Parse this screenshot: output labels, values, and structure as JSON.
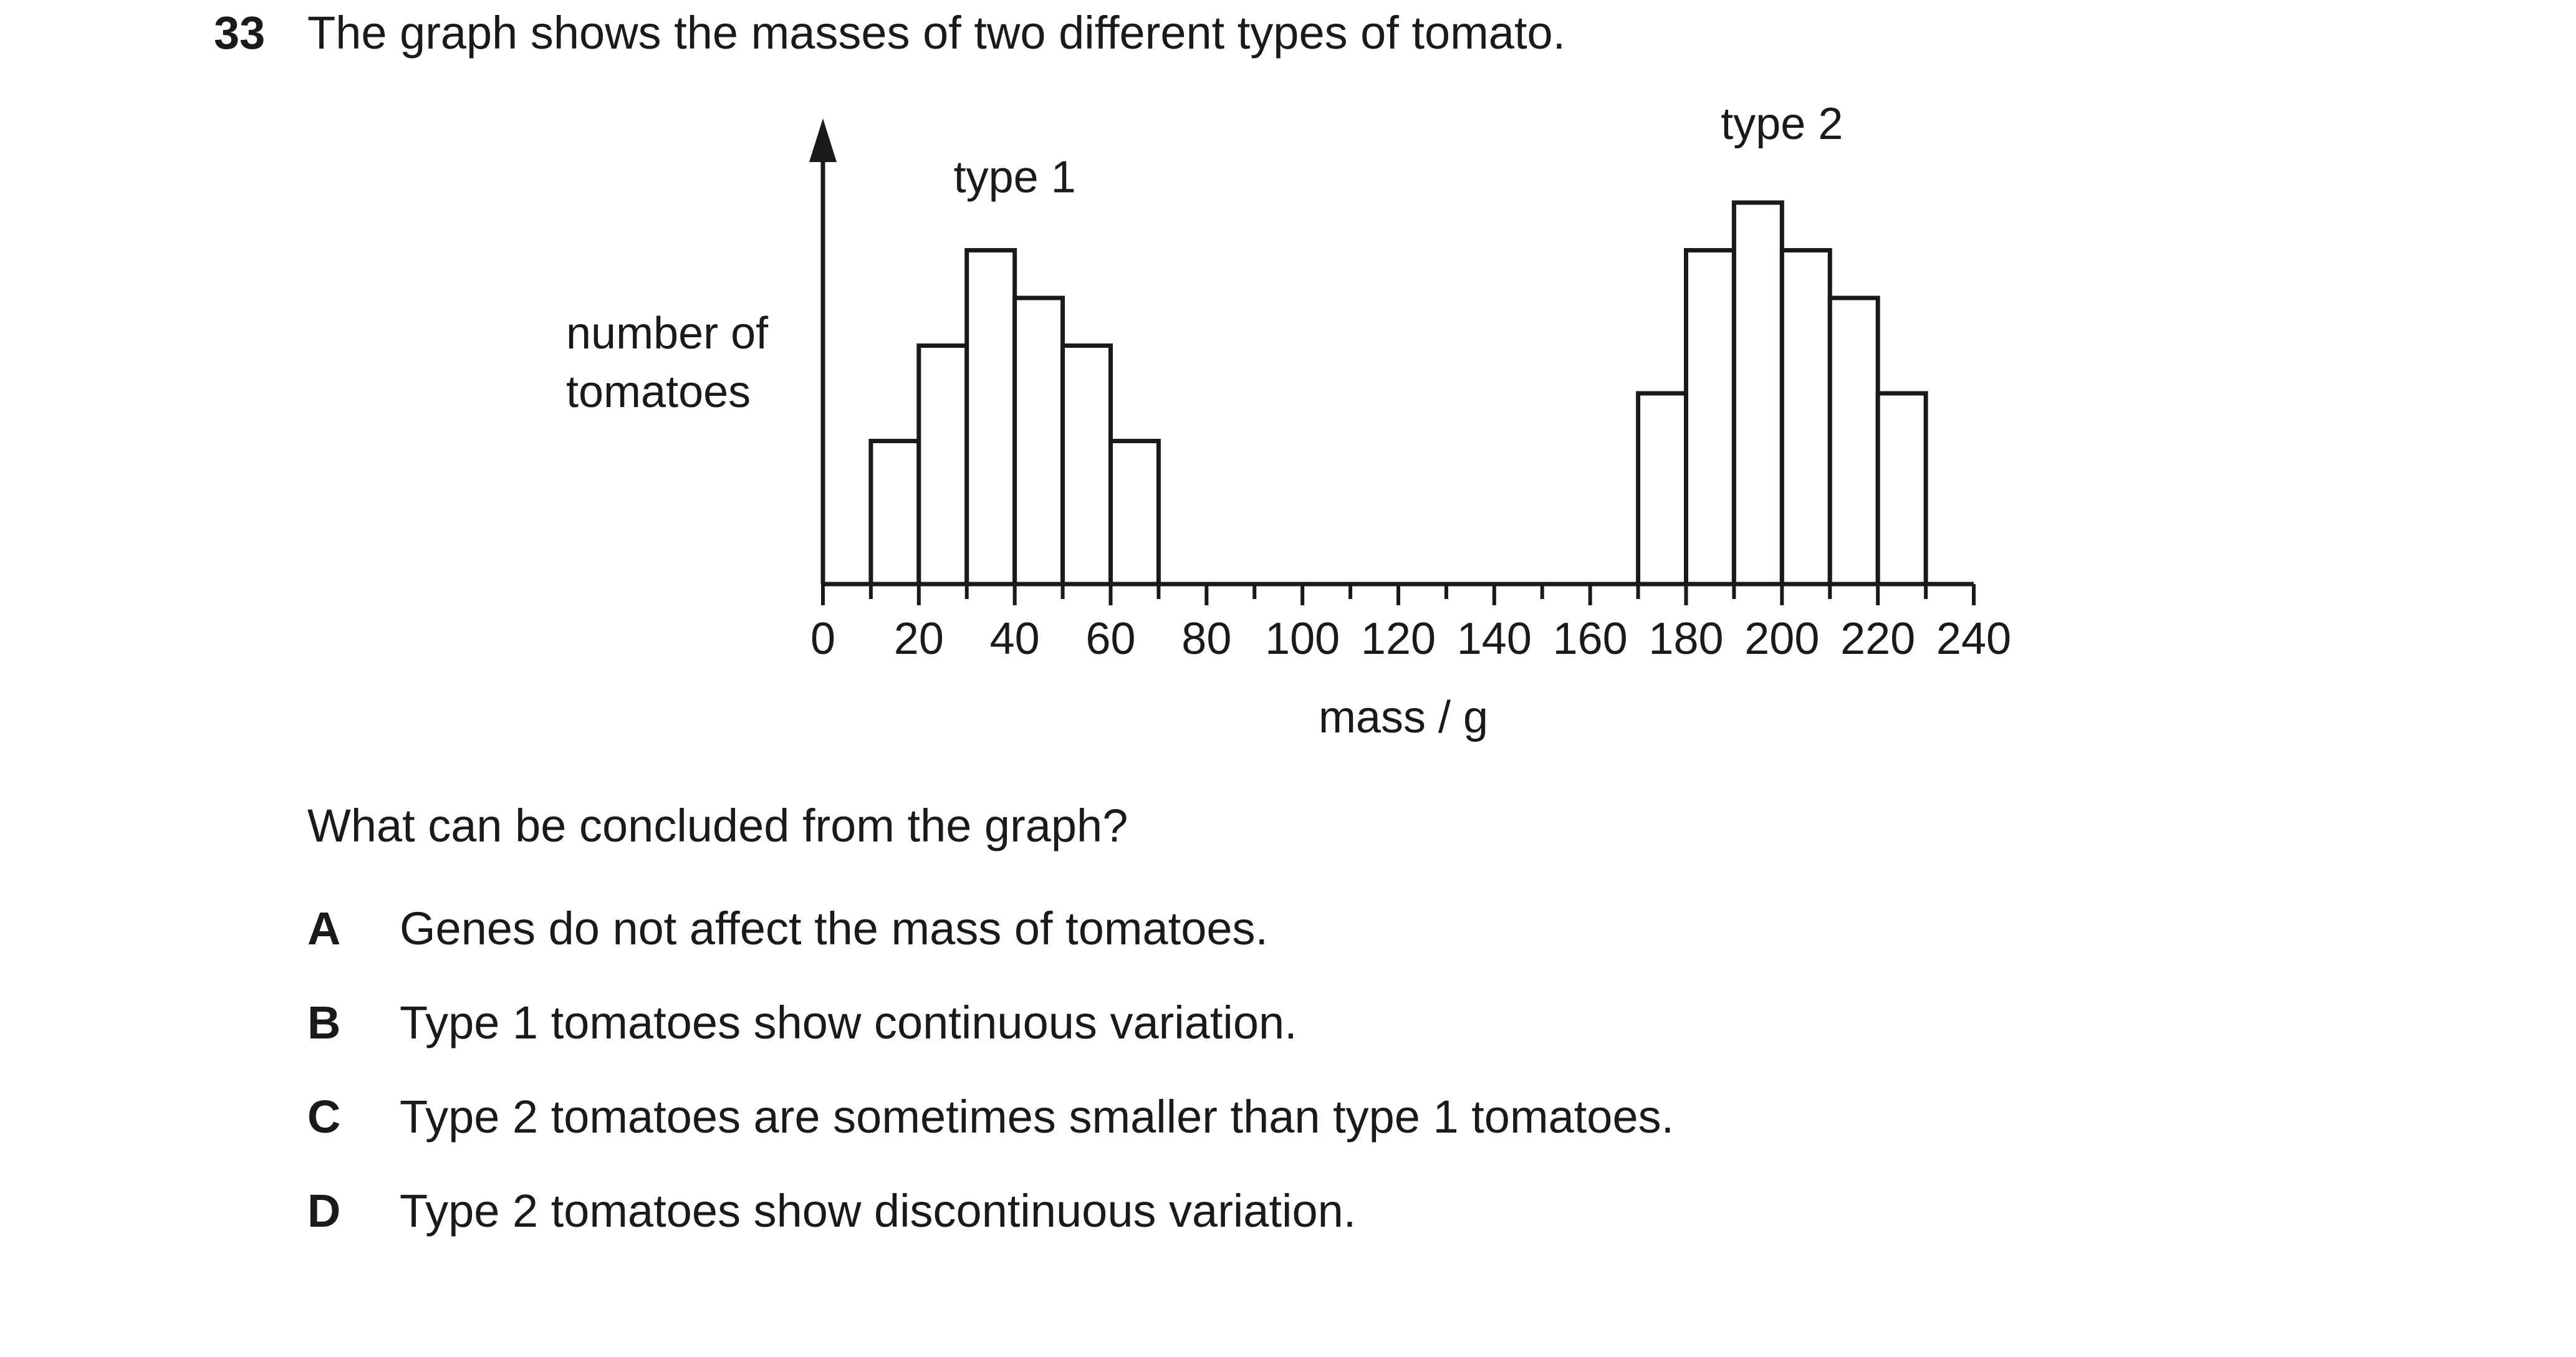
{
  "question": {
    "number": "33",
    "stem": "The graph shows the masses of two different types of tomato.",
    "prompt": "What can be concluded from the graph?",
    "options": [
      {
        "letter": "A",
        "text": "Genes do not affect the mass of tomatoes."
      },
      {
        "letter": "B",
        "text": "Type 1 tomatoes show continuous variation."
      },
      {
        "letter": "C",
        "text": "Type 2 tomatoes are sometimes smaller than type 1 tomatoes."
      },
      {
        "letter": "D",
        "text": "Type 2 tomatoes show discontinuous variation."
      }
    ]
  },
  "chart_data": {
    "type": "bar",
    "title": "",
    "xlabel": "mass / g",
    "ylabel": "number of tomatoes",
    "xlim": [
      0,
      240
    ],
    "ylim": [
      0,
      10
    ],
    "x_ticks": [
      0,
      20,
      40,
      60,
      80,
      100,
      120,
      140,
      160,
      180,
      200,
      220,
      240
    ],
    "minor_tick_step": 10,
    "grid": false,
    "legend": "none",
    "series": [
      {
        "name": "type 1",
        "bins": [
          {
            "start": 10,
            "end": 20,
            "value": 3.0
          },
          {
            "start": 20,
            "end": 30,
            "value": 5.0
          },
          {
            "start": 30,
            "end": 40,
            "value": 7.0
          },
          {
            "start": 40,
            "end": 50,
            "value": 6.0
          },
          {
            "start": 50,
            "end": 60,
            "value": 5.0
          },
          {
            "start": 60,
            "end": 70,
            "value": 3.0
          }
        ]
      },
      {
        "name": "type 2",
        "bins": [
          {
            "start": 170,
            "end": 180,
            "value": 4.0
          },
          {
            "start": 180,
            "end": 190,
            "value": 7.0
          },
          {
            "start": 190,
            "end": 200,
            "value": 8.0
          },
          {
            "start": 200,
            "end": 210,
            "value": 7.0
          },
          {
            "start": 210,
            "end": 220,
            "value": 6.0
          },
          {
            "start": 220,
            "end": 230,
            "value": 4.0
          }
        ]
      }
    ],
    "colors": {
      "bar_fill": "#ffffff",
      "bar_stroke": "#1a1a1a",
      "axis": "#1a1a1a"
    }
  }
}
